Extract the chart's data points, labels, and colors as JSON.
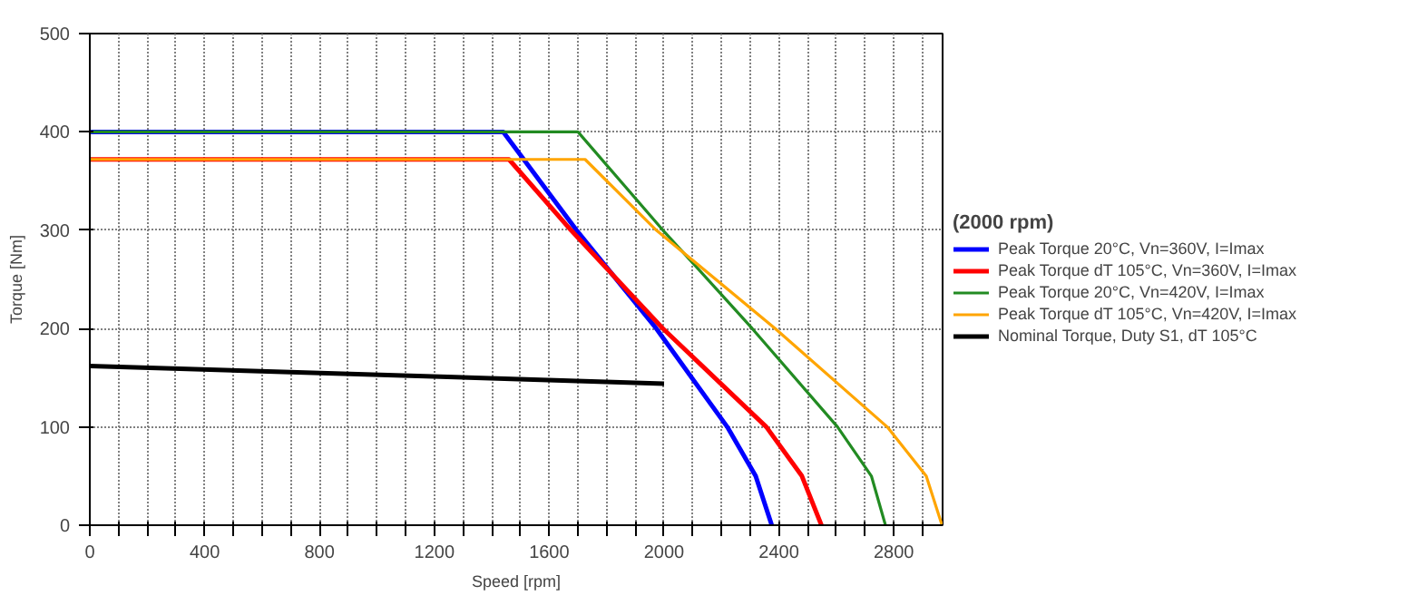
{
  "chart_data": {
    "type": "line",
    "xlabel": "Speed [rpm]",
    "ylabel": "Torque [Nm]",
    "legend_title": "(2000 rpm)",
    "xlim": [
      0,
      2970
    ],
    "ylim": [
      0,
      500
    ],
    "xticks": [
      0,
      {
        "value": 100,
        "label": null
      },
      {
        "value": 200,
        "label": null
      },
      {
        "value": 300,
        "label": null
      },
      400,
      {
        "value": 500,
        "label": null
      },
      {
        "value": 600,
        "label": null
      },
      {
        "value": 700,
        "label": null
      },
      800,
      {
        "value": 900,
        "label": null
      },
      {
        "value": 1000,
        "label": null
      },
      {
        "value": 1100,
        "label": null
      },
      1200,
      {
        "value": 1300,
        "label": null
      },
      {
        "value": 1400,
        "label": null
      },
      {
        "value": 1500,
        "label": null
      },
      1600,
      {
        "value": 1700,
        "label": null
      },
      {
        "value": 1800,
        "label": null
      },
      {
        "value": 1900,
        "label": null
      },
      2000,
      {
        "value": 2100,
        "label": null
      },
      {
        "value": 2200,
        "label": null
      },
      {
        "value": 2300,
        "label": null
      },
      2400,
      {
        "value": 2500,
        "label": null
      },
      {
        "value": 2600,
        "label": null
      },
      {
        "value": 2700,
        "label": null
      },
      2800,
      {
        "value": 2900,
        "label": null
      }
    ],
    "yticks": [
      0,
      100,
      200,
      300,
      400,
      500
    ],
    "grid": true,
    "legend": "right",
    "marker": "none",
    "line_style": "solid",
    "series": [
      {
        "name": "Peak Torque 20°C, Vn=360V, I=Imax",
        "color": "#0000ff",
        "x": [
          0,
          1440,
          1695,
          1973,
          2220,
          2319,
          2375
        ],
        "values": [
          400,
          400,
          300,
          200,
          100,
          50,
          0
        ]
      },
      {
        "name": "Peak Torque dT 105°C, Vn=360V, I=Imax",
        "color": "#ff0000",
        "x": [
          0,
          1460,
          1676,
          1996,
          2356,
          2480,
          2548
        ],
        "values": [
          372,
          372,
          300,
          200,
          100,
          50,
          0
        ]
      },
      {
        "name": "Peak Torque 20°C, Vn=420V, I=Imax",
        "color": "#228b22",
        "x": [
          0,
          1700,
          1996,
          2307,
          2604,
          2722,
          2771
        ],
        "values": [
          400,
          400,
          300,
          200,
          100,
          50,
          0
        ]
      },
      {
        "name": "Peak Torque dT 105°C, Vn=420V, I=Imax",
        "color": "#ffa500",
        "x": [
          0,
          1725,
          1973,
          2387,
          2777,
          2913,
          2968
        ],
        "values": [
          372,
          372,
          300,
          200,
          100,
          50,
          0
        ]
      },
      {
        "name": "Nominal Torque, Duty S1, dT 105°C",
        "color": "#000000",
        "x": [
          0,
          2000
        ],
        "values": [
          162,
          144
        ]
      }
    ]
  }
}
